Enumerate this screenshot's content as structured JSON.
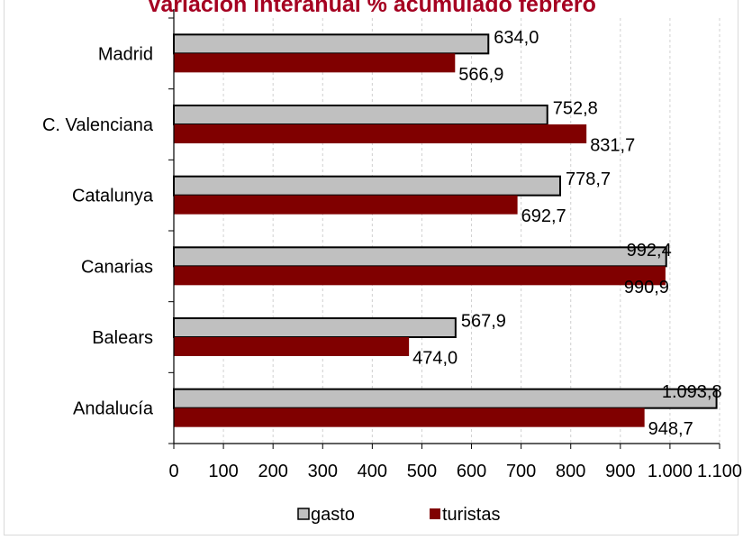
{
  "chart_data": {
    "type": "bar",
    "orientation": "horizontal",
    "title": "Variación interanual % acumulado febrero",
    "categories": [
      "Madrid",
      "C. Valenciana",
      "Catalunya",
      "Canarias",
      "Balears",
      "Andalucía"
    ],
    "series": [
      {
        "name": "gasto",
        "color": "#c0c0c0",
        "values": [
          634.0,
          752.8,
          778.7,
          992.4,
          567.9,
          1093.8
        ],
        "labels": [
          "634,0",
          "752,8",
          "778,7",
          "992,4",
          "567,9",
          "1.093,8"
        ]
      },
      {
        "name": "turistas",
        "color": "#800000",
        "values": [
          566.9,
          831.7,
          692.7,
          990.9,
          474.0,
          948.7
        ],
        "labels": [
          "566,9",
          "831,7",
          "692,7",
          "990,9",
          "474,0",
          "948,7"
        ]
      }
    ],
    "xlim": [
      0,
      1100
    ],
    "x_ticks": [
      0,
      100,
      200,
      300,
      400,
      500,
      600,
      700,
      800,
      900,
      1000,
      1100
    ],
    "x_tick_labels": [
      "0",
      "100",
      "200",
      "300",
      "400",
      "500",
      "600",
      "700",
      "800",
      "900",
      "1.000",
      "1.100"
    ],
    "xlabel": "",
    "ylabel": "",
    "grid": "vertical dashed",
    "legend_position": "bottom"
  }
}
